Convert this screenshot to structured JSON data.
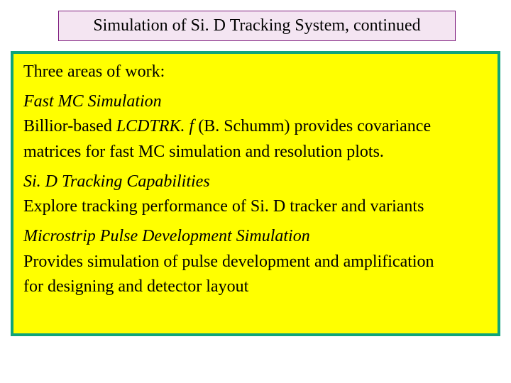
{
  "slide": {
    "background": "#ffffff",
    "title": {
      "text": "Simulation of Si. D Tracking System, continued",
      "background": "#f4e5f2",
      "border_color": "#7c187c",
      "color": "#000000"
    },
    "content": {
      "background": "#ffff00",
      "border_color": "#0ea47a",
      "border_width": 4,
      "color": "#000000",
      "lines": {
        "l0": "Three areas of work:",
        "l1": "Fast MC Simulation",
        "l2a": "Billior-based ",
        "l2b": "LCDTRK. f ",
        "l2c": " (B. Schumm) provides covariance",
        "l3": "matrices for fast MC simulation and resolution plots.",
        "l4": "Si. D Tracking Capabilities",
        "l5": "Explore tracking performance of Si. D tracker and variants",
        "l6": "Microstrip Pulse Development Simulation",
        "l7": "Provides simulation of pulse development and amplification",
        "l8": "for designing and detector layout"
      }
    }
  }
}
